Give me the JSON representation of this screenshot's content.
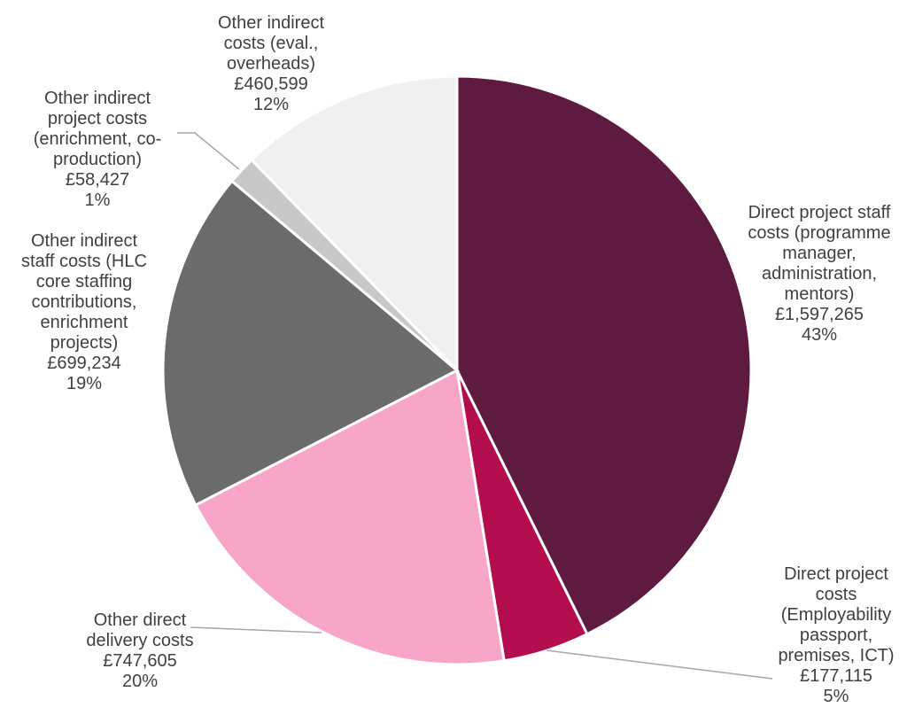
{
  "chart_data": {
    "type": "pie",
    "title": "",
    "slices": [
      {
        "lines": [
          "Direct project staff",
          "costs (programme",
          "manager,",
          "administration,",
          "mentors)"
        ],
        "amount": "£1,597,265",
        "percent": "43%",
        "value": 1597265,
        "color": "#5e1a3f"
      },
      {
        "lines": [
          "Direct project",
          "costs",
          "(Employability",
          "passport,",
          "premises, ICT)"
        ],
        "amount": "£177,115",
        "percent": "5%",
        "value": 177115,
        "color": "#b30d50"
      },
      {
        "lines": [
          "Other direct",
          "delivery costs"
        ],
        "amount": "£747,605",
        "percent": "20%",
        "value": 747605,
        "color": "#f7a6c8"
      },
      {
        "lines": [
          "Other indirect",
          "staff costs (HLC",
          "core staffing",
          "contributions,",
          "enrichment",
          "projects)"
        ],
        "amount": "£699,234",
        "percent": "19%",
        "value": 699234,
        "color": "#6b6b6b"
      },
      {
        "lines": [
          "Other indirect",
          "project costs",
          "(enrichment, co-",
          "production)"
        ],
        "amount": "£58,427",
        "percent": "1%",
        "value": 58427,
        "color": "#c8c8c8"
      },
      {
        "lines": [
          "Other indirect",
          "costs (eval.,",
          "overheads)"
        ],
        "amount": "£460,599",
        "percent": "12%",
        "value": 460599,
        "color": "#f0f0f0"
      }
    ]
  }
}
